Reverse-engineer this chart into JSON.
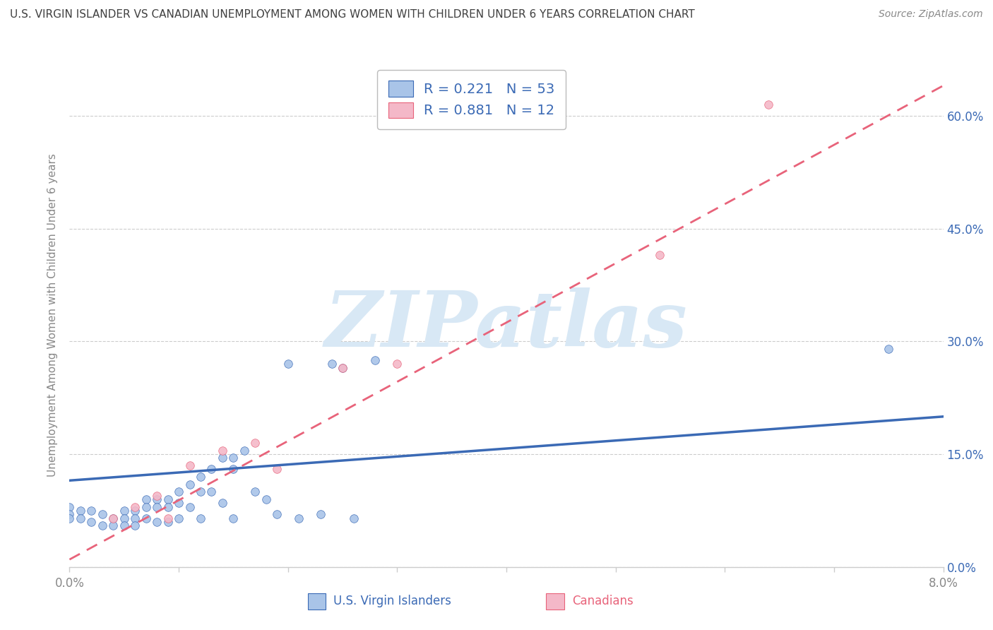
{
  "title": "U.S. VIRGIN ISLANDER VS CANADIAN UNEMPLOYMENT AMONG WOMEN WITH CHILDREN UNDER 6 YEARS CORRELATION CHART",
  "source": "Source: ZipAtlas.com",
  "ylabel": "Unemployment Among Women with Children Under 6 years",
  "xlabel_vi": "U.S. Virgin Islanders",
  "xlabel_ca": "Canadians",
  "legend_r_vi": "0.221",
  "legend_n_vi": "53",
  "legend_r_ca": "0.881",
  "legend_n_ca": "12",
  "xmin": 0.0,
  "xmax": 0.08,
  "ymin": 0.0,
  "ymax": 0.67,
  "yticks": [
    0.0,
    0.15,
    0.3,
    0.45,
    0.6
  ],
  "ytick_labels": [
    "0.0%",
    "15.0%",
    "30.0%",
    "45.0%",
    "60.0%"
  ],
  "watermark_text": "ZIPatlas",
  "vi_scatter_x": [
    0.0,
    0.0,
    0.0,
    0.001,
    0.001,
    0.002,
    0.002,
    0.003,
    0.003,
    0.004,
    0.004,
    0.005,
    0.005,
    0.005,
    0.006,
    0.006,
    0.006,
    0.007,
    0.007,
    0.007,
    0.008,
    0.008,
    0.008,
    0.009,
    0.009,
    0.009,
    0.01,
    0.01,
    0.01,
    0.011,
    0.011,
    0.012,
    0.012,
    0.012,
    0.013,
    0.013,
    0.014,
    0.014,
    0.015,
    0.015,
    0.015,
    0.016,
    0.017,
    0.018,
    0.019,
    0.02,
    0.021,
    0.023,
    0.024,
    0.025,
    0.026,
    0.028,
    0.075
  ],
  "vi_scatter_y": [
    0.08,
    0.07,
    0.065,
    0.075,
    0.065,
    0.075,
    0.06,
    0.07,
    0.055,
    0.065,
    0.055,
    0.075,
    0.065,
    0.055,
    0.075,
    0.065,
    0.055,
    0.09,
    0.08,
    0.065,
    0.09,
    0.08,
    0.06,
    0.09,
    0.08,
    0.06,
    0.1,
    0.085,
    0.065,
    0.11,
    0.08,
    0.12,
    0.1,
    0.065,
    0.13,
    0.1,
    0.145,
    0.085,
    0.145,
    0.13,
    0.065,
    0.155,
    0.1,
    0.09,
    0.07,
    0.27,
    0.065,
    0.07,
    0.27,
    0.265,
    0.065,
    0.275,
    0.29
  ],
  "ca_scatter_x": [
    0.004,
    0.006,
    0.008,
    0.009,
    0.011,
    0.014,
    0.017,
    0.019,
    0.025,
    0.03,
    0.054,
    0.064
  ],
  "ca_scatter_y": [
    0.065,
    0.08,
    0.095,
    0.065,
    0.135,
    0.155,
    0.165,
    0.13,
    0.265,
    0.27,
    0.415,
    0.615
  ],
  "vi_line_x": [
    0.0,
    0.08
  ],
  "vi_line_y": [
    0.115,
    0.2
  ],
  "ca_line_x": [
    0.0,
    0.08
  ],
  "ca_line_y": [
    0.01,
    0.64
  ],
  "vi_color": "#a9c4e8",
  "vi_line_color": "#3b6ab5",
  "ca_color": "#f4b8c8",
  "ca_line_color": "#e8637a",
  "background_color": "#ffffff",
  "grid_color": "#cccccc",
  "title_color": "#404040",
  "axis_color": "#888888",
  "legend_text_color": "#3b6ab5",
  "watermark_color": "#d8e8f5"
}
